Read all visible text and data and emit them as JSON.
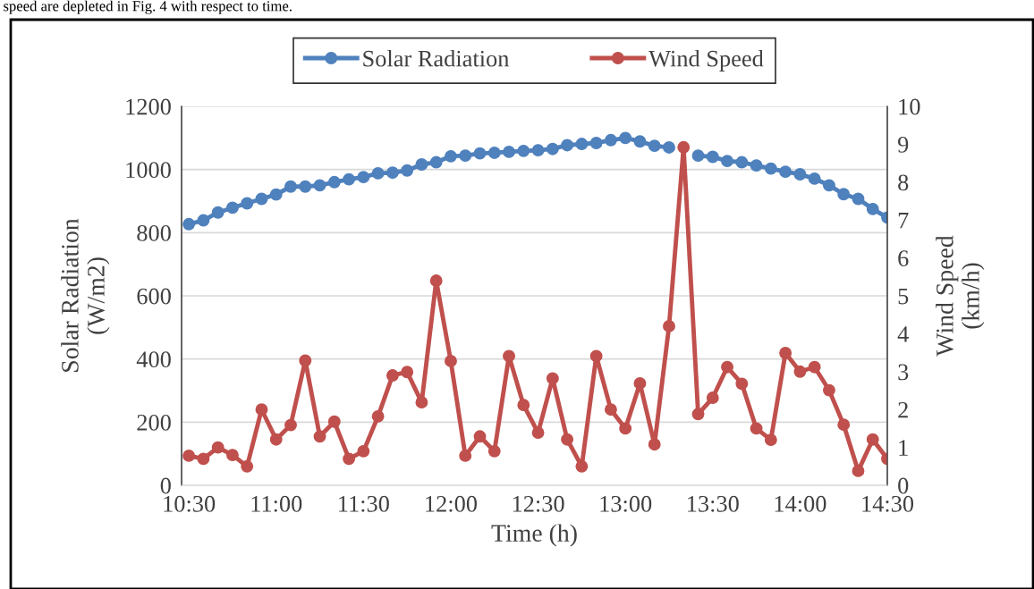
{
  "chart_data": {
    "type": "line",
    "annotations": [
      "speed are depleted in Fig. 4 with respect to time."
    ],
    "xlabel": "Time (h)",
    "ylabel": "Solar Radiation\n(W/m2)",
    "y2label": "Wind Speed\n(km/h)",
    "x": [
      10.5,
      10.5833,
      10.6667,
      10.75,
      10.8333,
      10.9167,
      11.0,
      11.0833,
      11.1667,
      11.25,
      11.3333,
      11.4167,
      11.5,
      11.5833,
      11.6667,
      11.75,
      11.8333,
      11.9167,
      12.0,
      12.0833,
      12.1667,
      12.25,
      12.3333,
      12.4167,
      12.5,
      12.5833,
      12.6667,
      12.75,
      12.8333,
      12.9167,
      13.0,
      13.0833,
      13.1667,
      13.25,
      13.3333,
      13.4167,
      13.5,
      13.5833,
      13.6667,
      13.75,
      13.8333,
      13.9167,
      14.0,
      14.0833,
      14.1667,
      14.25,
      14.3333,
      14.4167,
      14.5
    ],
    "series": [
      {
        "name": "Solar Radiation",
        "color": "#4f81bd",
        "axis": "y",
        "values": [
          827,
          839,
          864,
          879,
          893,
          907,
          921,
          946,
          946,
          950,
          960,
          969,
          976,
          988,
          990,
          997,
          1016,
          1023,
          1042,
          1044,
          1051,
          1053,
          1056,
          1059,
          1061,
          1065,
          1077,
          1081,
          1084,
          1093,
          1100,
          1089,
          1075,
          1070,
          null,
          1044,
          1040,
          1027,
          1023,
          1013,
          1003,
          993,
          985,
          971,
          950,
          922,
          907,
          875,
          848
        ]
      },
      {
        "name": "Wind Speed",
        "color": "#c0504d",
        "axis": "y2",
        "values": [
          0.78,
          0.7,
          1.0,
          0.8,
          0.5,
          2.0,
          1.21,
          1.59,
          3.29,
          1.29,
          1.68,
          0.7,
          0.9,
          1.82,
          2.9,
          2.99,
          2.19,
          5.4,
          3.28,
          0.78,
          1.29,
          0.9,
          3.41,
          2.12,
          1.39,
          2.82,
          1.21,
          0.5,
          3.41,
          2.0,
          1.5,
          2.69,
          1.08,
          4.2,
          8.92,
          1.88,
          2.31,
          3.12,
          2.68,
          1.5,
          1.2,
          3.49,
          3.0,
          3.12,
          2.51,
          1.6,
          0.38,
          1.21,
          0.7
        ]
      }
    ],
    "xlim": [
      10.4583,
      14.5
    ],
    "xticks": [
      {
        "value": 10.5,
        "label": "10:30"
      },
      {
        "value": 11.0,
        "label": "11:00"
      },
      {
        "value": 11.5,
        "label": "11:30"
      },
      {
        "value": 12.0,
        "label": "12:00"
      },
      {
        "value": 12.5,
        "label": "12:30"
      },
      {
        "value": 13.0,
        "label": "13:00"
      },
      {
        "value": 13.5,
        "label": "13:30"
      },
      {
        "value": 14.0,
        "label": "14:00"
      },
      {
        "value": 14.5,
        "label": "14:30"
      }
    ],
    "ylim": [
      0,
      1200
    ],
    "yticks": [
      0,
      200,
      400,
      600,
      800,
      1000,
      1200
    ],
    "y2lim": [
      0,
      10
    ],
    "y2ticks": [
      0,
      1,
      2,
      3,
      4,
      5,
      6,
      7,
      8,
      9,
      10
    ],
    "grid": "y",
    "legend": "top",
    "marker": "circle",
    "line_style": "solid"
  }
}
